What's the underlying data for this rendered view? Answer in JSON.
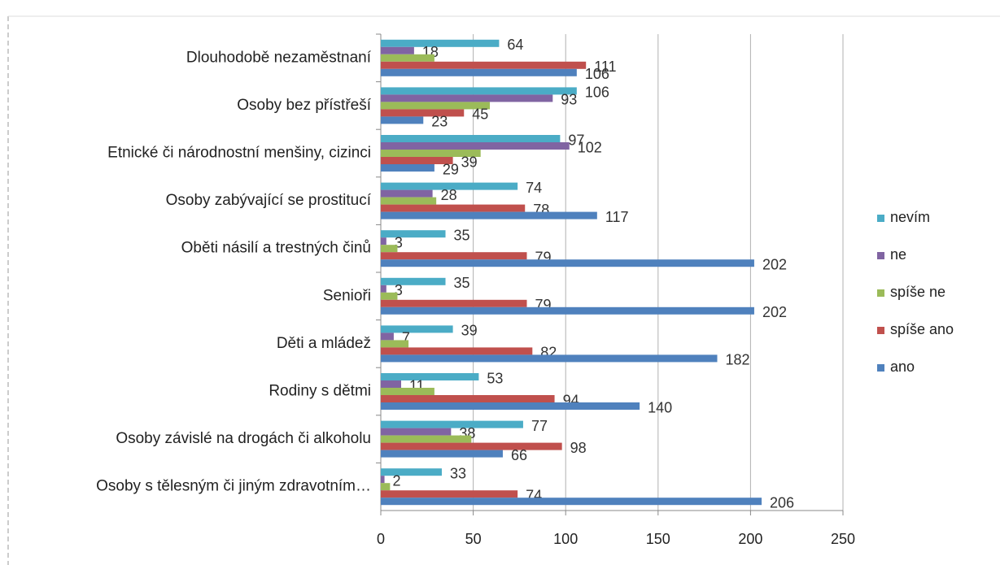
{
  "chart_data": {
    "type": "bar",
    "orientation": "horizontal",
    "categories": [
      "Dlouhodobě nezaměstnaní",
      "Osoby bez přístřeší",
      "Etnické či národnostní menšiny, cizinci",
      "Osoby zabývající se prostitucí",
      "Oběti násilí a trestných činů",
      "Senioři",
      "Děti a mládež",
      "Rodiny s dětmi",
      "Osoby závislé na drogách či alkoholu",
      "Osoby s tělesným či jiným zdravotním…"
    ],
    "series": [
      {
        "name": "nevím",
        "color": "#4bacc6",
        "values": [
          64,
          106,
          97,
          74,
          35,
          35,
          39,
          53,
          77,
          33
        ],
        "value_labels": [
          "64",
          "106",
          "97",
          "74",
          "35",
          "35",
          "39",
          "53",
          "77",
          "33"
        ]
      },
      {
        "name": "ne",
        "color": "#8064a2",
        "values": [
          18,
          93,
          102,
          28,
          3,
          3,
          7,
          11,
          38,
          2
        ],
        "value_labels": [
          "18",
          "93",
          "102",
          "28",
          "3",
          "3",
          "7",
          "11",
          "38",
          "2"
        ]
      },
      {
        "name": "spíše ne",
        "color": "#9bbb59",
        "values": [
          29,
          59,
          54,
          30,
          9,
          9,
          15,
          29,
          49,
          5
        ],
        "value_labels": [
          null,
          null,
          null,
          null,
          null,
          null,
          null,
          null,
          null,
          null
        ]
      },
      {
        "name": "spíše ano",
        "color": "#c0504d",
        "values": [
          111,
          45,
          39,
          78,
          79,
          79,
          82,
          94,
          98,
          74
        ],
        "value_labels": [
          "111",
          "45",
          "39",
          "78",
          "79",
          "79",
          "82",
          "94",
          "98",
          "74"
        ]
      },
      {
        "name": "ano",
        "color": "#4f81bd",
        "values": [
          106,
          23,
          29,
          117,
          202,
          202,
          182,
          140,
          66,
          206
        ],
        "value_labels": [
          "106",
          "23",
          "29",
          "117",
          "202",
          "202",
          "182",
          "140",
          "66",
          "206"
        ]
      }
    ],
    "xlim": [
      0,
      250
    ],
    "xticks": [
      0,
      50,
      100,
      150,
      200,
      250
    ],
    "grid": true,
    "legend": "right"
  }
}
